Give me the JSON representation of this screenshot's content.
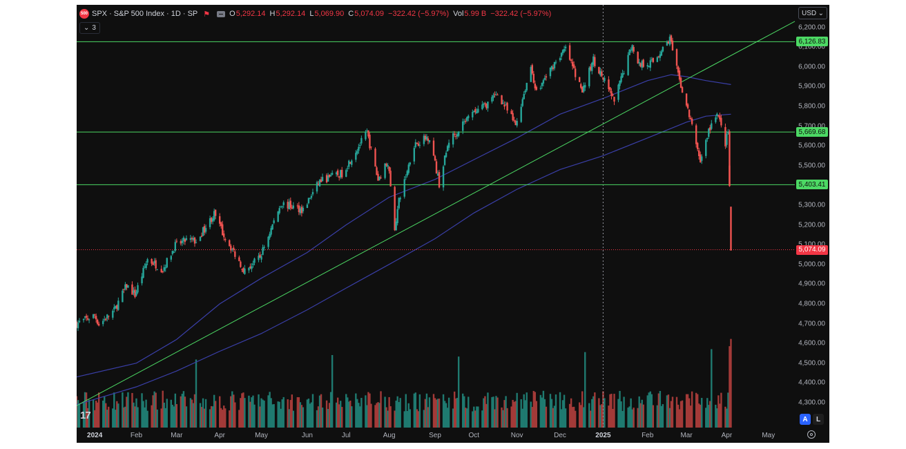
{
  "legend": {
    "badge": "500",
    "title": "SPX · S&P 500 Index · 1D · SP",
    "o_label": "O",
    "o_value": "5,292.14",
    "h_label": "H",
    "h_value": "5,292.14",
    "l_label": "L",
    "l_value": "5,069.90",
    "c_label": "C",
    "c_value": "5,074.09",
    "change": "−322.42 (−5.97%)",
    "vol_label": "Vol",
    "vol_value": "5.99 B",
    "vol_change": "−322.42 (−5.97%)"
  },
  "indicators": {
    "count": "3"
  },
  "currency": "USD",
  "scale_buttons": {
    "auto": "A",
    "log": "L"
  },
  "icons": [
    "flag-icon",
    "eye-icon",
    "chevron-down-icon",
    "tradingview-logo",
    "settings-icon"
  ],
  "colors": {
    "up": "#26a69a",
    "down": "#ef5350",
    "background": "#0f0f0f",
    "hline": "#4cd964",
    "ma": "#3a3fa8",
    "current_price": "#f23645"
  },
  "chart_data": {
    "type": "candlestick",
    "symbol": "SPX",
    "interval": "1D",
    "ylim": [
      4250,
      6250
    ],
    "price_ticks": [
      4300,
      4400,
      4500,
      4600,
      4700,
      4800,
      4900,
      5000,
      5100,
      5200,
      5300,
      5400,
      5500,
      5600,
      5700,
      5800,
      5900,
      6000,
      6100,
      6200
    ],
    "price_tick_labels": [
      "4,300.00",
      "4,400.00",
      "4,500.00",
      "4,600.00",
      "4,700.00",
      "4,800.00",
      "4,900.00",
      "5,000.00",
      "5,100.00",
      "5,200.00",
      "5,300.00",
      "5,400.00",
      "5,500.00",
      "5,600.00",
      "5,700.00",
      "5,800.00",
      "5,900.00",
      "6,000.00",
      "6,100.00",
      "6,200.00"
    ],
    "time_labels": [
      {
        "label": "2024",
        "date": "2024-01-02",
        "bold": true
      },
      {
        "label": "Feb",
        "date": "2024-02-01"
      },
      {
        "label": "Mar",
        "date": "2024-03-01"
      },
      {
        "label": "Apr",
        "date": "2024-04-01"
      },
      {
        "label": "May",
        "date": "2024-05-01"
      },
      {
        "label": "Jun",
        "date": "2024-06-03"
      },
      {
        "label": "Jul",
        "date": "2024-07-01"
      },
      {
        "label": "Aug",
        "date": "2024-08-01"
      },
      {
        "label": "Sep",
        "date": "2024-09-03"
      },
      {
        "label": "Oct",
        "date": "2024-10-01"
      },
      {
        "label": "Nov",
        "date": "2024-11-01"
      },
      {
        "label": "Dec",
        "date": "2024-12-02"
      },
      {
        "label": "2025",
        "date": "2025-01-02",
        "bold": true
      },
      {
        "label": "Feb",
        "date": "2025-02-03"
      },
      {
        "label": "Mar",
        "date": "2025-03-03"
      },
      {
        "label": "Apr",
        "date": "2025-04-01"
      },
      {
        "label": "May",
        "date": "2025-05-01"
      }
    ],
    "x_range": [
      "2023-12-20",
      "2025-05-20"
    ],
    "closes": [
      [
        "2023-12-20",
        4700
      ],
      [
        "2024-01-02",
        4742
      ],
      [
        "2024-01-05",
        4697
      ],
      [
        "2024-01-16",
        4766
      ],
      [
        "2024-01-25",
        4894
      ],
      [
        "2024-01-31",
        4845
      ],
      [
        "2024-02-09",
        5026
      ],
      [
        "2024-02-20",
        4975
      ],
      [
        "2024-02-29",
        5096
      ],
      [
        "2024-03-08",
        5123
      ],
      [
        "2024-03-15",
        5117
      ],
      [
        "2024-03-28",
        5254
      ],
      [
        "2024-04-04",
        5147
      ],
      [
        "2024-04-19",
        4967
      ],
      [
        "2024-04-30",
        5035
      ],
      [
        "2024-05-15",
        5308
      ],
      [
        "2024-05-31",
        5277
      ],
      [
        "2024-06-12",
        5421
      ],
      [
        "2024-06-28",
        5460
      ],
      [
        "2024-07-16",
        5667
      ],
      [
        "2024-07-24",
        5427
      ],
      [
        "2024-07-31",
        5522
      ],
      [
        "2024-08-05",
        5186
      ],
      [
        "2024-08-08",
        5319
      ],
      [
        "2024-08-19",
        5608
      ],
      [
        "2024-08-30",
        5648
      ],
      [
        "2024-09-06",
        5408
      ],
      [
        "2024-09-13",
        5626
      ],
      [
        "2024-09-30",
        5762
      ],
      [
        "2024-10-11",
        5815
      ],
      [
        "2024-10-18",
        5864
      ],
      [
        "2024-10-31",
        5705
      ],
      [
        "2024-11-11",
        6001
      ],
      [
        "2024-11-15",
        5870
      ],
      [
        "2024-11-29",
        6032
      ],
      [
        "2024-12-06",
        6090
      ],
      [
        "2024-12-18",
        5872
      ],
      [
        "2024-12-26",
        6037
      ],
      [
        "2025-01-10",
        5827
      ],
      [
        "2025-01-23",
        6119
      ],
      [
        "2025-01-27",
        6012
      ],
      [
        "2025-02-07",
        6025
      ],
      [
        "2025-02-19",
        6144
      ],
      [
        "2025-02-25",
        5955
      ],
      [
        "2025-03-04",
        5778
      ],
      [
        "2025-03-10",
        5614
      ],
      [
        "2025-03-13",
        5522
      ],
      [
        "2025-03-19",
        5675
      ],
      [
        "2025-03-25",
        5776
      ],
      [
        "2025-03-31",
        5612
      ],
      [
        "2025-04-02",
        5670
      ],
      [
        "2025-04-03",
        5396
      ],
      [
        "2025-04-04",
        5074
      ]
    ],
    "last_candle": {
      "date": "2025-04-04",
      "open": 5292.14,
      "high": 5292.14,
      "low": 5069.9,
      "close": 5074.09
    },
    "moving_average_1": [
      [
        "2023-12-20",
        4430
      ],
      [
        "2024-02-01",
        4500
      ],
      [
        "2024-03-01",
        4620
      ],
      [
        "2024-04-01",
        4800
      ],
      [
        "2024-05-01",
        4930
      ],
      [
        "2024-06-03",
        5060
      ],
      [
        "2024-07-01",
        5200
      ],
      [
        "2024-08-01",
        5340
      ],
      [
        "2024-09-03",
        5430
      ],
      [
        "2024-10-01",
        5530
      ],
      [
        "2024-11-01",
        5640
      ],
      [
        "2024-12-02",
        5760
      ],
      [
        "2025-01-02",
        5840
      ],
      [
        "2025-02-03",
        5930
      ],
      [
        "2025-02-20",
        5960
      ],
      [
        "2025-03-03",
        5950
      ],
      [
        "2025-03-17",
        5930
      ],
      [
        "2025-04-04",
        5910
      ]
    ],
    "moving_average_2": [
      [
        "2023-12-20",
        4290
      ],
      [
        "2024-02-01",
        4380
      ],
      [
        "2024-03-01",
        4460
      ],
      [
        "2024-04-01",
        4560
      ],
      [
        "2024-05-01",
        4650
      ],
      [
        "2024-06-03",
        4770
      ],
      [
        "2024-07-01",
        4880
      ],
      [
        "2024-08-01",
        5000
      ],
      [
        "2024-09-03",
        5130
      ],
      [
        "2024-10-01",
        5260
      ],
      [
        "2024-11-01",
        5380
      ],
      [
        "2024-12-02",
        5480
      ],
      [
        "2025-01-02",
        5550
      ],
      [
        "2025-02-03",
        5640
      ],
      [
        "2025-03-03",
        5720
      ],
      [
        "2025-03-17",
        5750
      ],
      [
        "2025-04-04",
        5760
      ]
    ],
    "horizontal_lines": [
      {
        "value": 6126.83,
        "label": "6,126.83"
      },
      {
        "value": 5669.68,
        "label": "5,669.68"
      },
      {
        "value": 5403.41,
        "label": "5,403.41"
      }
    ],
    "current_price": {
      "value": 5074.09,
      "label": "5,074.09"
    },
    "trendline": {
      "from": [
        "2023-12-20",
        4285
      ],
      "to": [
        "2025-05-20",
        6230
      ]
    },
    "crosshair_date": "2025-01-02",
    "volume_max": 7.0,
    "volume_spikes": [
      [
        "2024-03-15",
        4.6
      ],
      [
        "2024-06-21",
        4.9
      ],
      [
        "2024-09-20",
        4.8
      ],
      [
        "2024-12-20",
        5.1
      ],
      [
        "2025-03-21",
        5.3
      ],
      [
        "2025-04-03",
        5.5
      ],
      [
        "2025-04-04",
        5.99
      ]
    ]
  }
}
